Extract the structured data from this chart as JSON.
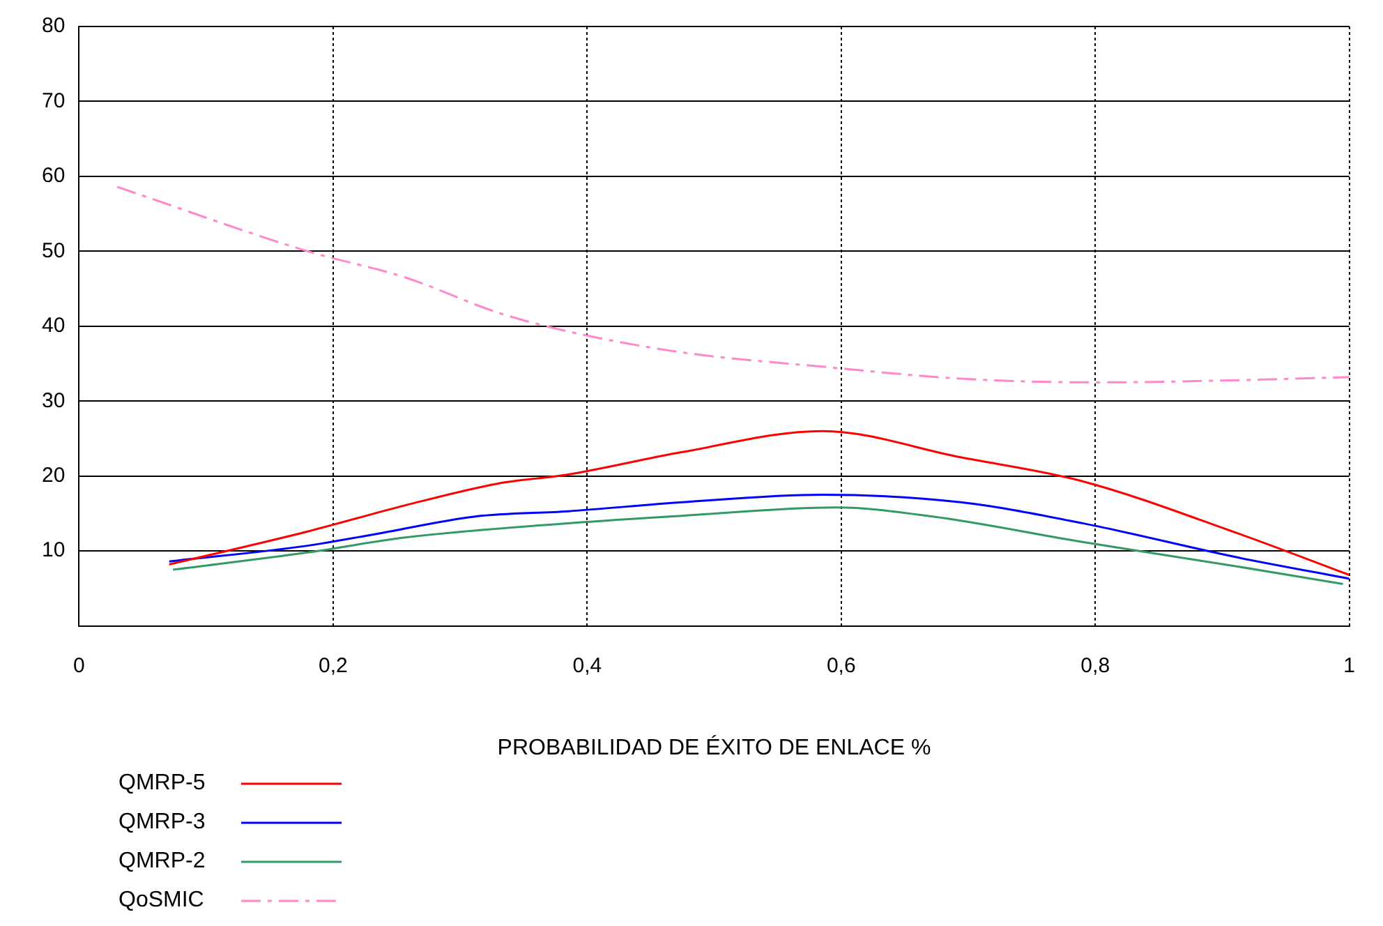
{
  "chart_data": {
    "type": "line",
    "xlabel": "PROBABILIDAD DE ÉXITO DE ENLACE %",
    "xlim": [
      0,
      1
    ],
    "xticks": [
      0,
      {
        "value": 0.2,
        "label": "0,2"
      },
      {
        "value": 0.4,
        "label": "0,4"
      },
      {
        "value": 0.6,
        "label": "0,6"
      },
      {
        "value": 0.8,
        "label": "0,8"
      },
      1
    ],
    "ylim": [
      0,
      80
    ],
    "yticks": [
      10,
      20,
      30,
      40,
      50,
      60,
      70,
      80
    ],
    "grid": true,
    "legend": "bottom left",
    "marker": "none",
    "series": [
      {
        "name": "QMRP-5",
        "color": "#ff0000",
        "line_style": "solid",
        "x": [
          0.071,
          0.18,
          0.257,
          0.33,
          0.385,
          0.475,
          0.585,
          0.694,
          0.79,
          0.913,
          1
        ],
        "values": [
          8.2,
          12.6,
          16.1,
          19,
          20.2,
          23.2,
          26,
          22.5,
          19.3,
          12.3,
          6.8
        ]
      },
      {
        "name": "QMRP-3",
        "color": "#0000ff",
        "line_style": "solid",
        "x": [
          0.071,
          0.18,
          0.235,
          0.312,
          0.385,
          0.475,
          0.585,
          0.694,
          0.79,
          0.913,
          1
        ],
        "values": [
          8.6,
          10.7,
          12.3,
          14.6,
          15.3,
          16.5,
          17.5,
          16.5,
          13.7,
          9.1,
          6.3
        ]
      },
      {
        "name": "QMRP-2",
        "color": "#339966",
        "line_style": "solid",
        "x": [
          0.074,
          0.18,
          0.257,
          0.385,
          0.475,
          0.596,
          0.672,
          0.79,
          0.913,
          0.995
        ],
        "values": [
          7.5,
          9.8,
          11.8,
          13.7,
          14.7,
          15.8,
          14.6,
          11.2,
          7.9,
          5.6
        ]
      },
      {
        "name": "QoSMIC",
        "color": "#ff88cc",
        "line_style": "dashed",
        "x": [
          0.03,
          0.18,
          0.257,
          0.33,
          0.385,
          0.475,
          0.585,
          0.694,
          0.803,
          0.913,
          1
        ],
        "values": [
          58.6,
          50,
          46.5,
          41.8,
          39.3,
          36.5,
          34.6,
          33,
          32.5,
          32.8,
          33.2
        ]
      }
    ]
  }
}
